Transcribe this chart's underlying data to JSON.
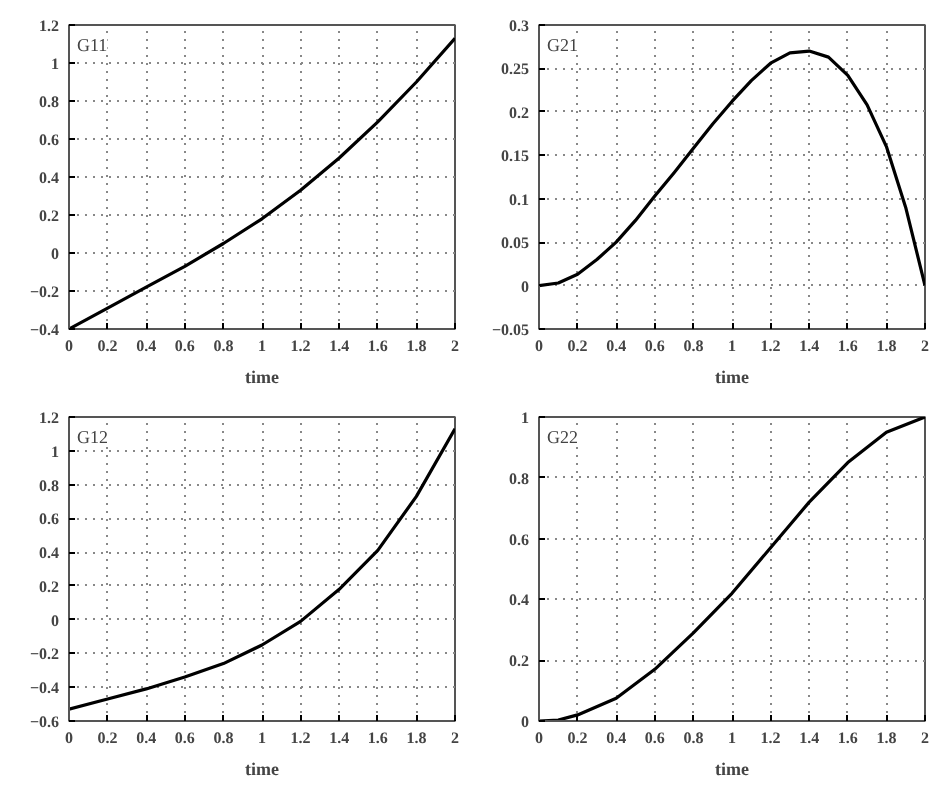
{
  "chart_data": [
    {
      "type": "line",
      "xlabel": "time",
      "annotations": [
        "G11"
      ],
      "x": [
        0,
        0.2,
        0.4,
        0.6,
        0.8,
        1.0,
        1.2,
        1.4,
        1.6,
        1.8,
        2.0
      ],
      "series": [
        {
          "color": "#000000",
          "values": [
            -0.4,
            -0.29,
            -0.18,
            -0.07,
            0.05,
            0.18,
            0.33,
            0.5,
            0.69,
            0.9,
            1.13
          ]
        }
      ],
      "xlim": [
        0,
        2
      ],
      "xticks": [
        0,
        0.2,
        0.4,
        0.6,
        0.8,
        1,
        1.2,
        1.4,
        1.6,
        1.8,
        2
      ],
      "ylim": [
        -0.4,
        1.2
      ],
      "yticks": [
        -0.4,
        -0.2,
        0,
        0.2,
        0.4,
        0.6,
        0.8,
        1,
        1.2
      ],
      "grid": true,
      "line_style": "solid",
      "marker": "none"
    },
    {
      "type": "line",
      "xlabel": "time",
      "annotations": [
        "G21"
      ],
      "x": [
        0,
        0.1,
        0.2,
        0.3,
        0.4,
        0.5,
        0.6,
        0.7,
        0.8,
        0.9,
        1.0,
        1.1,
        1.2,
        1.3,
        1.4,
        1.5,
        1.6,
        1.7,
        1.8,
        1.9,
        2.0
      ],
      "series": [
        {
          "color": "#000000",
          "values": [
            0,
            0.003,
            0.013,
            0.03,
            0.05,
            0.075,
            0.103,
            0.13,
            0.158,
            0.186,
            0.212,
            0.236,
            0.256,
            0.268,
            0.27,
            0.263,
            0.242,
            0.208,
            0.16,
            0.09,
            0
          ]
        }
      ],
      "xlim": [
        0,
        2
      ],
      "xticks": [
        0,
        0.2,
        0.4,
        0.6,
        0.8,
        1,
        1.2,
        1.4,
        1.6,
        1.8,
        2
      ],
      "ylim": [
        -0.05,
        0.3
      ],
      "yticks": [
        -0.05,
        0,
        0.05,
        0.1,
        0.15,
        0.2,
        0.25,
        0.3
      ],
      "grid": true,
      "line_style": "solid",
      "marker": "none"
    },
    {
      "type": "line",
      "xlabel": "time",
      "annotations": [
        "G12"
      ],
      "x": [
        0,
        0.2,
        0.4,
        0.6,
        0.8,
        1.0,
        1.2,
        1.4,
        1.6,
        1.8,
        2.0
      ],
      "series": [
        {
          "color": "#000000",
          "values": [
            -0.53,
            -0.47,
            -0.41,
            -0.34,
            -0.26,
            -0.15,
            -0.01,
            0.18,
            0.41,
            0.73,
            1.13
          ]
        }
      ],
      "xlim": [
        0,
        2
      ],
      "xticks": [
        0,
        0.2,
        0.4,
        0.6,
        0.8,
        1,
        1.2,
        1.4,
        1.6,
        1.8,
        2
      ],
      "ylim": [
        -0.6,
        1.2
      ],
      "yticks": [
        -0.6,
        -0.4,
        -0.2,
        0,
        0.2,
        0.4,
        0.6,
        0.8,
        1,
        1.2
      ],
      "grid": true,
      "line_style": "solid",
      "marker": "none"
    },
    {
      "type": "line",
      "xlabel": "time",
      "annotations": [
        "G22"
      ],
      "x": [
        0,
        0.1,
        0.2,
        0.4,
        0.6,
        0.8,
        1.0,
        1.2,
        1.4,
        1.6,
        1.8,
        2.0
      ],
      "series": [
        {
          "color": "#000000",
          "values": [
            0,
            0.003,
            0.02,
            0.075,
            0.17,
            0.29,
            0.42,
            0.57,
            0.72,
            0.85,
            0.95,
            1.0
          ]
        }
      ],
      "xlim": [
        0,
        2
      ],
      "xticks": [
        0,
        0.2,
        0.4,
        0.6,
        0.8,
        1,
        1.2,
        1.4,
        1.6,
        1.8,
        2
      ],
      "ylim": [
        0,
        1
      ],
      "yticks": [
        0,
        0.2,
        0.4,
        0.6,
        0.8,
        1
      ],
      "grid": true,
      "line_style": "solid",
      "marker": "none"
    }
  ]
}
